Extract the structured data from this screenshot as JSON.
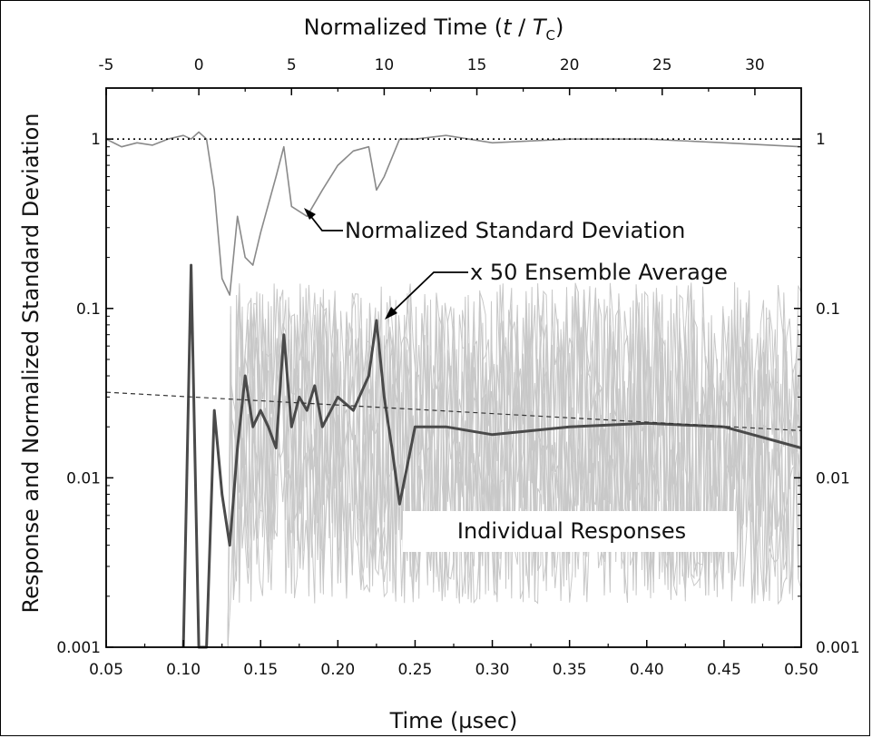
{
  "chart_data": {
    "type": "line",
    "title": "",
    "xlabel": "Time (µsec)",
    "x2label_prefix": "Normalized Time (",
    "x2label_t": "t",
    "x2label_slash": " / ",
    "x2label_T": "T",
    "x2label_sub": "C",
    "x2label_suffix": ")",
    "ylabel": "Response and Normalized Standard Deviation",
    "xlim": [
      0.05,
      0.5
    ],
    "x2lim": [
      -5,
      32.5
    ],
    "ylim": [
      0.001,
      2
    ],
    "yscale": "log",
    "grid": false,
    "x_ticks": [
      0.05,
      0.1,
      0.15,
      0.2,
      0.25,
      0.3,
      0.35,
      0.4,
      0.45,
      0.5
    ],
    "x_tick_labels": [
      "0.05",
      "0.10",
      "0.15",
      "0.20",
      "0.25",
      "0.30",
      "0.35",
      "0.40",
      "0.45",
      "0.50"
    ],
    "x2_ticks": [
      -5,
      0,
      5,
      10,
      15,
      20,
      25,
      30
    ],
    "x2_tick_labels": [
      "-5",
      "0",
      "5",
      "10",
      "15",
      "20",
      "25",
      "30"
    ],
    "y_ticks": [
      0.001,
      0.01,
      0.1,
      1
    ],
    "y_tick_labels": [
      "0.001",
      "0.01",
      "0.1",
      "1"
    ],
    "annotations": {
      "std_label": "Normalized  Standard Deviation",
      "avg_label": "x 50 Ensemble Average",
      "individual_label": "Individual Responses"
    },
    "colors": {
      "std_dev": "#8a8a8a",
      "ensemble_avg": "#4a4a4a",
      "individual": "#c8c8c8",
      "trend": "#333333",
      "reference": "#000000"
    },
    "series": [
      {
        "x": [
          0.05,
          0.06,
          0.07,
          0.08,
          0.09,
          0.1,
          0.105,
          0.11,
          0.115,
          0.12,
          0.125,
          0.13,
          0.135,
          0.14,
          0.145,
          0.15,
          0.16,
          0.165,
          0.17,
          0.18,
          0.19,
          0.2,
          0.21,
          0.22,
          0.225,
          0.23,
          0.24,
          0.25,
          0.27,
          0.3,
          0.35,
          0.4,
          0.45,
          0.5
        ],
        "values": [
          1.0,
          0.9,
          0.95,
          0.92,
          1.0,
          1.05,
          1.0,
          1.1,
          1.0,
          0.5,
          0.15,
          0.12,
          0.35,
          0.2,
          0.18,
          0.28,
          0.6,
          0.9,
          0.4,
          0.35,
          0.5,
          0.7,
          0.85,
          0.9,
          0.5,
          0.6,
          1.0,
          1.0,
          1.05,
          0.95,
          1.0,
          1.0,
          0.95,
          0.9
        ]
      },
      {
        "x": [
          0.1,
          0.105,
          0.11,
          0.115,
          0.12,
          0.125,
          0.13,
          0.135,
          0.14,
          0.145,
          0.15,
          0.155,
          0.16,
          0.165,
          0.17,
          0.175,
          0.18,
          0.185,
          0.19,
          0.2,
          0.21,
          0.22,
          0.225,
          0.23,
          0.235,
          0.24,
          0.25,
          0.27,
          0.3,
          0.35,
          0.4,
          0.45,
          0.5
        ],
        "values": [
          0.001,
          0.18,
          0.001,
          0.001,
          0.025,
          0.008,
          0.004,
          0.015,
          0.04,
          0.02,
          0.025,
          0.02,
          0.015,
          0.07,
          0.02,
          0.03,
          0.025,
          0.035,
          0.02,
          0.03,
          0.025,
          0.04,
          0.085,
          0.03,
          0.015,
          0.007,
          0.02,
          0.02,
          0.018,
          0.02,
          0.021,
          0.02,
          0.015
        ]
      },
      {
        "x": [
          0.05,
          0.5
        ],
        "values": [
          0.032,
          0.019
        ]
      },
      {
        "x": [
          0.05,
          0.5
        ],
        "values": [
          1.0,
          1.0
        ]
      }
    ]
  }
}
